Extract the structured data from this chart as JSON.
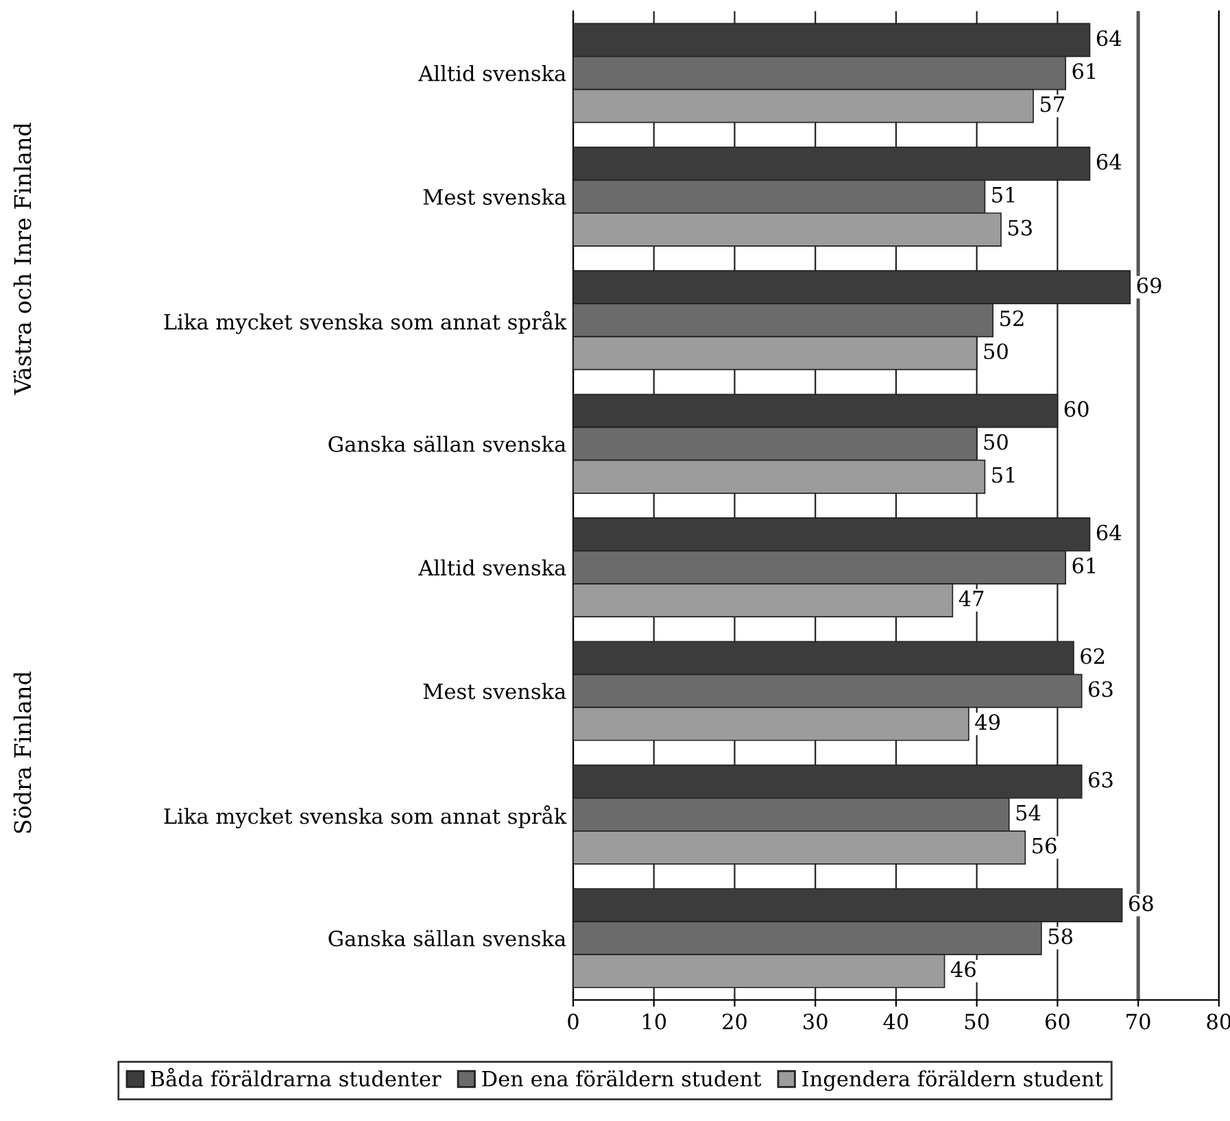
{
  "chart_data": {
    "type": "bar",
    "orientation": "horizontal",
    "categories": [
      "Alltid svenska",
      "Mest svenska",
      "Lika mycket svenska som annat språk",
      "Ganska sällan svenska",
      "Alltid svenska",
      "Mest svenska",
      "Lika mycket svenska som annat språk",
      "Ganska sällan svenska"
    ],
    "series": [
      {
        "name": "Båda föräldrarna studenter",
        "color": "#3c3c3c",
        "values": [
          64,
          64,
          69,
          60,
          64,
          62,
          63,
          68
        ]
      },
      {
        "name": "Den ena föräldern student",
        "color": "#6b6b6b",
        "values": [
          61,
          51,
          52,
          50,
          61,
          63,
          54,
          58
        ]
      },
      {
        "name": "Ingendera föräldern student",
        "color": "#9c9c9c",
        "values": [
          57,
          53,
          50,
          51,
          47,
          49,
          56,
          46
        ]
      }
    ],
    "annotations": [
      "Västra och Inre Finland",
      "Södra Finland"
    ],
    "xlim": [
      0,
      80
    ],
    "xticks": [
      0,
      10,
      20,
      30,
      40,
      50,
      60,
      70,
      80
    ],
    "ref_lines": [
      {
        "axis": "x",
        "value": 70,
        "color": "#555555"
      }
    ],
    "grid": "x",
    "legend": "bottom",
    "data_labels": true
  }
}
